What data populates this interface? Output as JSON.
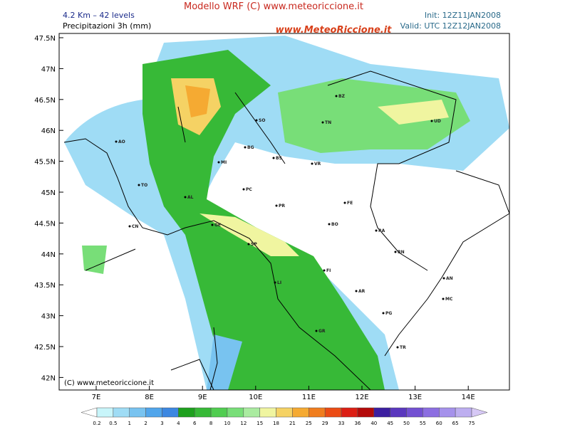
{
  "header": {
    "title": "Modello WRF (C) www.meteoriccione.it",
    "resolution": "4.2 Km – 42 levels",
    "field": "Precipitazioni 3h (mm)",
    "init": "Init: 12Z11JAN2008",
    "valid": "Valid: UTC 12Z12JAN2008",
    "logo": "www.MeteoRiccione.it"
  },
  "map": {
    "credit": "(C) www.meteoriccione.it",
    "lat_labels": [
      "47.5N",
      "47N",
      "46.5N",
      "46N",
      "45.5N",
      "45N",
      "44.5N",
      "44N",
      "43.5N",
      "43N",
      "42.5N",
      "42N"
    ],
    "lon_labels": [
      "7E",
      "8E",
      "9E",
      "10E",
      "11E",
      "12E",
      "13E",
      "14E"
    ],
    "cities": [
      "AO",
      "TO",
      "CN",
      "AL",
      "GE",
      "MI",
      "BG",
      "SO",
      "BS",
      "VR",
      "PC",
      "PR",
      "SP",
      "FE",
      "BO",
      "RA",
      "RN",
      "FI",
      "LI",
      "AR",
      "PG",
      "GR",
      "TR",
      "AN",
      "MC",
      "BZ",
      "TN",
      "UD"
    ]
  },
  "legend": {
    "labels": [
      0.2,
      0.5,
      1,
      2,
      3,
      4,
      6,
      8,
      10,
      12,
      15,
      18,
      21,
      25,
      29,
      33,
      36,
      40,
      45,
      50,
      55,
      60,
      65,
      75
    ],
    "under_color": "#ffffff",
    "over_color": "#d6c8f5",
    "colors": [
      "#c8f5fa",
      "#9fdcf5",
      "#78c3f0",
      "#50a5eb",
      "#3c87e1",
      "#1ea01e",
      "#37b937",
      "#50cd50",
      "#78de78",
      "#aaeba0",
      "#f0f5a0",
      "#f5d264",
      "#f5aa32",
      "#f07d1e",
      "#eb4b14",
      "#dc1e14",
      "#b40a0a",
      "#3c1ea0",
      "#5a37be",
      "#7350d2",
      "#8c6ee1",
      "#a591eb",
      "#bdaef0"
    ]
  }
}
